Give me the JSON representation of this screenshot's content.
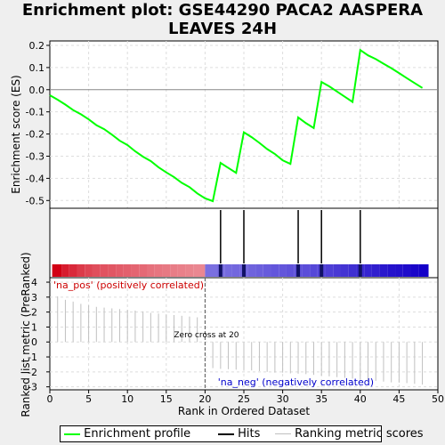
{
  "title": "Enrichment plot: GSE44290 PACA2 AASPERA LEAVES 24H",
  "chart_data": [
    {
      "type": "line",
      "name": "enrichment-profile",
      "ylabel": "Enrichment score (ES)",
      "ylim": [
        -0.535,
        0.22
      ],
      "yticks": [
        0.2,
        0.1,
        0.0,
        -0.1,
        -0.2,
        -0.3,
        -0.4,
        -0.5
      ],
      "x": [
        0,
        1,
        2,
        3,
        4,
        5,
        6,
        7,
        8,
        9,
        10,
        11,
        12,
        13,
        14,
        15,
        16,
        17,
        18,
        19,
        20,
        21,
        22,
        23,
        24,
        25,
        26,
        27,
        28,
        29,
        30,
        31,
        32,
        33,
        34,
        35,
        36,
        37,
        38,
        39,
        40,
        41,
        42,
        43,
        44,
        45,
        46,
        47,
        48
      ],
      "values": [
        -0.025,
        -0.045,
        -0.067,
        -0.092,
        -0.111,
        -0.134,
        -0.16,
        -0.178,
        -0.203,
        -0.23,
        -0.25,
        -0.278,
        -0.302,
        -0.322,
        -0.35,
        -0.373,
        -0.394,
        -0.42,
        -0.44,
        -0.468,
        -0.49,
        -0.503,
        -0.33,
        -0.353,
        -0.375,
        -0.192,
        -0.214,
        -0.24,
        -0.268,
        -0.29,
        -0.319,
        -0.335,
        -0.125,
        -0.151,
        -0.173,
        0.035,
        0.015,
        -0.008,
        -0.032,
        -0.055,
        0.179,
        0.155,
        0.138,
        0.117,
        0.097,
        0.075,
        0.052,
        0.03,
        0.008
      ],
      "color": "#00ff00",
      "grid": true
    },
    {
      "type": "hits",
      "name": "hits",
      "positions": [
        22,
        25,
        32,
        35,
        40
      ]
    },
    {
      "type": "bar",
      "name": "ranking-metric",
      "xlabel": "Rank in Ordered Dataset",
      "ylabel": "Ranked list metric (PreRanked)",
      "xlim": [
        0,
        50
      ],
      "xticks": [
        0,
        5,
        10,
        15,
        20,
        25,
        30,
        35,
        40,
        45,
        50
      ],
      "ylim": [
        -3.2,
        4.3
      ],
      "yticks": [
        4,
        3,
        2,
        1,
        0,
        -1,
        -2,
        -3
      ],
      "x": [
        1,
        2,
        3,
        4,
        5,
        6,
        7,
        8,
        9,
        10,
        11,
        12,
        13,
        14,
        15,
        16,
        17,
        18,
        19,
        21,
        22,
        23,
        24,
        25,
        26,
        27,
        28,
        29,
        30,
        31,
        32,
        33,
        34,
        35,
        36,
        37,
        38,
        39,
        40,
        41,
        42,
        43,
        44,
        45,
        46,
        47,
        48
      ],
      "values": [
        3.05,
        2.82,
        2.7,
        2.55,
        2.45,
        2.35,
        2.3,
        2.25,
        2.2,
        2.15,
        2.1,
        2.05,
        1.95,
        1.9,
        1.85,
        1.8,
        1.75,
        1.7,
        1.65,
        -1.75,
        -1.8,
        -1.82,
        -1.85,
        -1.88,
        -1.9,
        -1.95,
        -2.0,
        -2.05,
        -2.05,
        -2.1,
        -2.12,
        -2.15,
        -2.2,
        -2.25,
        -2.3,
        -2.35,
        -2.4,
        -2.45,
        -2.5,
        -2.55,
        -2.6,
        -2.65,
        -2.7,
        -2.72,
        -2.75,
        -2.8,
        -2.85
      ],
      "color": "#c0c0c0",
      "zero_cross": 20,
      "annotation": "Zero cross at 20",
      "pos_label": "'na_pos' (positively correlated)",
      "neg_label": "'na_neg' (negatively correlated)",
      "pos_color": "#cc0000",
      "neg_color": "#0000cc"
    }
  ],
  "legend": {
    "enrichment_profile": "Enrichment profile",
    "hits": "Hits",
    "ranking_metric": "Ranking metric scores"
  }
}
